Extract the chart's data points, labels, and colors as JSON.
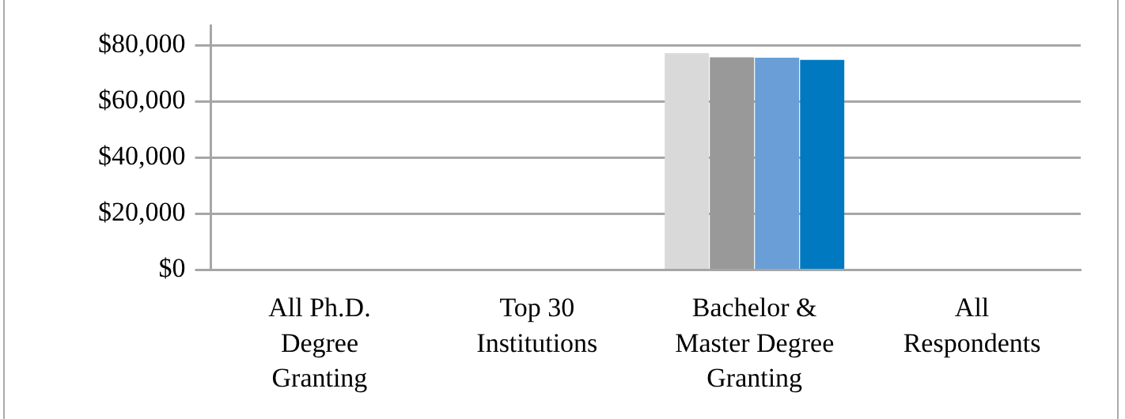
{
  "chart_data": {
    "type": "bar",
    "categories": [
      "All Ph.D. Degree Granting",
      "Top 30 Institutions",
      "Bachelor & Master Degree Granting",
      "All Respondents"
    ],
    "series": [
      {
        "color": "#d9d9d9",
        "values": [
          null,
          null,
          77200,
          null
        ]
      },
      {
        "color": "#999999",
        "values": [
          null,
          null,
          75700,
          null
        ]
      },
      {
        "color": "#699fd6",
        "values": [
          null,
          null,
          75600,
          null
        ]
      },
      {
        "color": "#0079c1",
        "values": [
          null,
          null,
          74800,
          null
        ]
      }
    ],
    "ylim": [
      0,
      87000
    ],
    "yticks": [
      {
        "value": 0,
        "label": "$0"
      },
      {
        "value": 20000,
        "label": "$20,000"
      },
      {
        "value": 40000,
        "label": "$40,000"
      },
      {
        "value": 60000,
        "label": "$60,000"
      },
      {
        "value": 80000,
        "label": "$80,000"
      }
    ],
    "grid": "y",
    "legend": false
  }
}
